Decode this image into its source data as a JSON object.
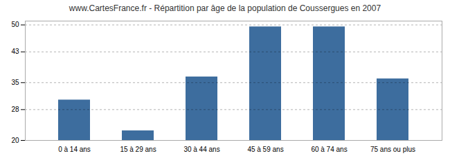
{
  "chart_data": {
    "type": "bar",
    "title": "www.CartesFrance.fr - Répartition par âge de la population de Coussergues en 2007",
    "categories": [
      "0 à 14 ans",
      "15 à 29 ans",
      "30 à 44 ans",
      "45 à 59 ans",
      "60 à 74 ans",
      "75 ans ou plus"
    ],
    "values": [
      30.5,
      22.5,
      36.5,
      49.5,
      49.5,
      36.0
    ],
    "color": "#3d6d9e",
    "ylim": [
      20,
      51
    ],
    "yticks": [
      20,
      28,
      35,
      43,
      50
    ],
    "grid": true
  }
}
